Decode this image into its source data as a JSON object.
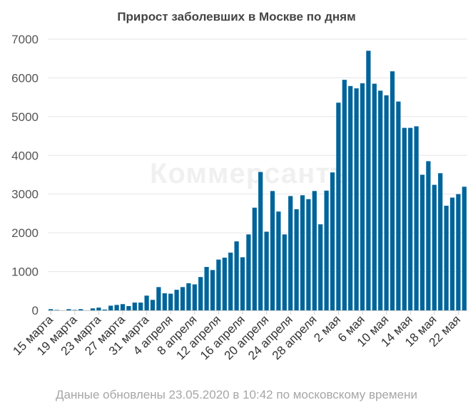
{
  "chart_data": {
    "type": "bar",
    "title": "Прирост заболевших в Москве по дням",
    "color": "#00649a",
    "grid": true,
    "ylim": [
      0,
      7000
    ],
    "yticks": [
      0,
      1000,
      2000,
      3000,
      4000,
      5000,
      6000,
      7000
    ],
    "xticklabels": [
      "15 марта",
      "19 марта",
      "23 марта",
      "27 марта",
      "31 марта",
      "4 апреля",
      "8 апреля",
      "12 апреля",
      "16 апреля",
      "20 апреля",
      "24 апреля",
      "28 апреля",
      "2 мая",
      "6 мая",
      "10 мая",
      "14 мая",
      "18 мая",
      "22 мая"
    ],
    "x": [
      "2020-03-15",
      "2020-03-16",
      "2020-03-17",
      "2020-03-18",
      "2020-03-19",
      "2020-03-20",
      "2020-03-21",
      "2020-03-22",
      "2020-03-23",
      "2020-03-24",
      "2020-03-25",
      "2020-03-26",
      "2020-03-27",
      "2020-03-28",
      "2020-03-29",
      "2020-03-30",
      "2020-03-31",
      "2020-04-01",
      "2020-04-02",
      "2020-04-03",
      "2020-04-04",
      "2020-04-05",
      "2020-04-06",
      "2020-04-07",
      "2020-04-08",
      "2020-04-09",
      "2020-04-10",
      "2020-04-11",
      "2020-04-12",
      "2020-04-13",
      "2020-04-14",
      "2020-04-15",
      "2020-04-16",
      "2020-04-17",
      "2020-04-18",
      "2020-04-19",
      "2020-04-20",
      "2020-04-21",
      "2020-04-22",
      "2020-04-23",
      "2020-04-24",
      "2020-04-25",
      "2020-04-26",
      "2020-04-27",
      "2020-04-28",
      "2020-04-29",
      "2020-04-30",
      "2020-05-01",
      "2020-05-02",
      "2020-05-03",
      "2020-05-04",
      "2020-05-05",
      "2020-05-06",
      "2020-05-07",
      "2020-05-08",
      "2020-05-09",
      "2020-05-10",
      "2020-05-11",
      "2020-05-12",
      "2020-05-13",
      "2020-05-14",
      "2020-05-15",
      "2020-05-16",
      "2020-05-17",
      "2020-05-18",
      "2020-05-19",
      "2020-05-20",
      "2020-05-21",
      "2020-05-22",
      "2020-05-23"
    ],
    "values": [
      30,
      10,
      0,
      30,
      10,
      30,
      0,
      50,
      70,
      20,
      120,
      140,
      160,
      110,
      200,
      200,
      380,
      270,
      600,
      440,
      430,
      530,
      600,
      700,
      670,
      860,
      1120,
      1040,
      1310,
      1360,
      1490,
      1780,
      1370,
      1960,
      2650,
      3570,
      2030,
      3080,
      2550,
      1960,
      2950,
      2610,
      2970,
      2870,
      3080,
      2220,
      3090,
      3560,
      5360,
      5950,
      5790,
      5730,
      5860,
      6700,
      5850,
      5670,
      5550,
      6170,
      5390,
      4710,
      4710,
      4750,
      3500,
      3850,
      3240,
      3540,
      2700,
      2910,
      3000,
      3190
    ]
  },
  "watermark": "Коммерсантъ",
  "footer": "Данные обновлены 23.05.2020 в 10:42 по московскому времени"
}
